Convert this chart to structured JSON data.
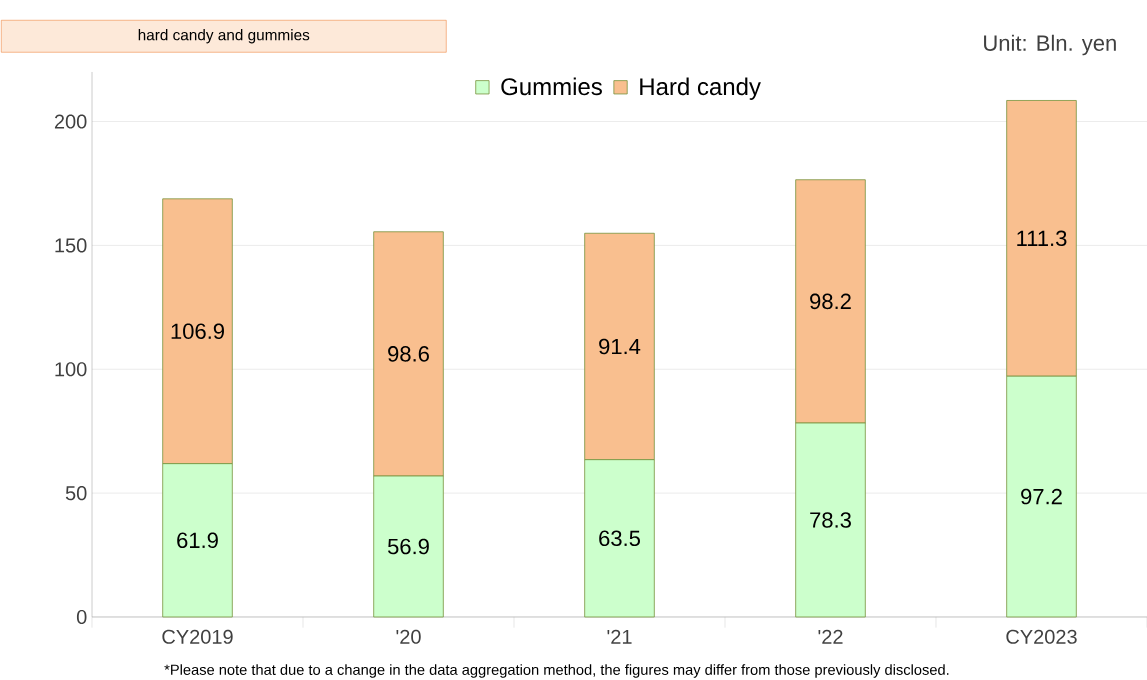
{
  "chart_data": {
    "type": "bar",
    "stacked": true,
    "categories": [
      "CY2019",
      "'20",
      "'21",
      "'22",
      "CY2023"
    ],
    "series": [
      {
        "name": "Gummies",
        "color": "#ccffcc",
        "values": [
          61.9,
          56.9,
          63.5,
          78.3,
          97.2
        ]
      },
      {
        "name": "Hard candy",
        "color": "#f9bf8f",
        "values": [
          106.9,
          98.6,
          91.4,
          98.2,
          111.3
        ]
      }
    ],
    "ylim": [
      0,
      220
    ],
    "yticks": [
      0,
      50,
      100,
      150,
      200
    ],
    "grid": "y",
    "legend": "top",
    "data_labels": true,
    "annotations": [
      "hard candy and gummies",
      "Unit: Bln. yen",
      "*Please note that due to a change in the data aggregation method, the figures may differ from those previously disclosed."
    ]
  }
}
